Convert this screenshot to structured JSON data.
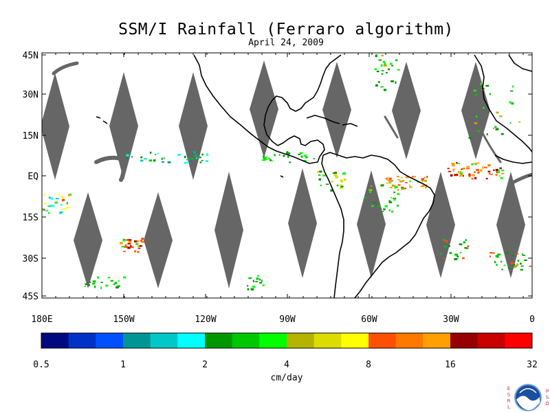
{
  "title": "SSM/I Rainfall (Ferraro algorithm)",
  "subtitle": "April 24, 2009",
  "map": {
    "lat_labels": [
      "45N",
      "30N",
      "15N",
      "EQ",
      "15S",
      "30S",
      "45S"
    ],
    "lon_labels": [
      "180E",
      "150W",
      "120W",
      "90W",
      "60W",
      "30W",
      "0"
    ],
    "missing_swath_color": "#666666",
    "coastline_color": "#000000"
  },
  "colorbar": {
    "colors": [
      "#000a80",
      "#0032c8",
      "#0050ff",
      "#009696",
      "#00c8c8",
      "#00ffff",
      "#009600",
      "#00c800",
      "#00ff00",
      "#b4b400",
      "#dcdc00",
      "#ffff00",
      "#ff5000",
      "#ff7800",
      "#ffa000",
      "#960000",
      "#c80000",
      "#ff0000"
    ],
    "tick_labels": [
      "0.5",
      "1",
      "2",
      "4",
      "8",
      "16",
      "32"
    ],
    "unit_label": "cm/day"
  },
  "logo": {
    "left_letters": [
      "E",
      "S",
      "R",
      "L"
    ],
    "right_letters": [
      "P",
      "S",
      "D"
    ],
    "name": "noaa-logo"
  }
}
